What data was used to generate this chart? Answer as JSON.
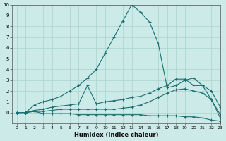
{
  "xlabel": "Humidex (Indice chaleur)",
  "xlim": [
    -0.5,
    23
  ],
  "ylim": [
    -1,
    10
  ],
  "yticks": [
    0,
    1,
    2,
    3,
    4,
    5,
    6,
    7,
    8,
    9,
    10
  ],
  "xticks": [
    0,
    1,
    2,
    3,
    4,
    5,
    6,
    7,
    8,
    9,
    10,
    11,
    12,
    13,
    14,
    15,
    16,
    17,
    18,
    19,
    20,
    21,
    22,
    23
  ],
  "bg_color": "#cceae7",
  "grid_color": "#aad4d0",
  "line_color": "#1a7070",
  "line1_x": [
    0,
    1,
    2,
    3,
    4,
    5,
    6,
    7,
    8,
    9,
    10,
    11,
    12,
    13,
    14,
    15,
    16,
    17,
    18,
    19,
    20,
    21,
    22,
    23
  ],
  "line1_y": [
    0.0,
    0.0,
    0.7,
    1.0,
    1.2,
    1.5,
    2.0,
    2.5,
    3.2,
    4.0,
    5.5,
    7.0,
    8.5,
    10.0,
    9.3,
    8.4,
    6.4,
    2.3,
    2.5,
    3.0,
    3.2,
    2.5,
    1.2,
    -0.5
  ],
  "line2_x": [
    0,
    1,
    2,
    3,
    4,
    5,
    6,
    7,
    8,
    9,
    10,
    11,
    12,
    13,
    14,
    15,
    16,
    17,
    18,
    19,
    20,
    21,
    22,
    23
  ],
  "line2_y": [
    0.0,
    0.0,
    0.2,
    0.3,
    0.5,
    0.6,
    0.7,
    0.8,
    2.5,
    0.8,
    1.0,
    1.1,
    1.2,
    1.4,
    1.5,
    1.8,
    2.2,
    2.5,
    3.1,
    3.1,
    2.5,
    2.5,
    2.0,
    0.5
  ],
  "line3_x": [
    0,
    1,
    2,
    3,
    4,
    5,
    6,
    7,
    8,
    9,
    10,
    11,
    12,
    13,
    14,
    15,
    16,
    17,
    18,
    19,
    20,
    21,
    22,
    23
  ],
  "line3_y": [
    0.0,
    0.0,
    0.1,
    0.1,
    0.2,
    0.3,
    0.3,
    0.3,
    0.3,
    0.3,
    0.3,
    0.3,
    0.4,
    0.5,
    0.7,
    1.0,
    1.4,
    1.8,
    2.1,
    2.2,
    2.0,
    1.8,
    1.2,
    -0.2
  ],
  "line4_x": [
    0,
    1,
    2,
    3,
    4,
    5,
    6,
    7,
    8,
    9,
    10,
    11,
    12,
    13,
    14,
    15,
    16,
    17,
    18,
    19,
    20,
    21,
    22,
    23
  ],
  "line4_y": [
    0.0,
    0.0,
    0.1,
    -0.1,
    -0.1,
    -0.1,
    -0.1,
    -0.2,
    -0.2,
    -0.2,
    -0.2,
    -0.2,
    -0.2,
    -0.2,
    -0.2,
    -0.3,
    -0.3,
    -0.3,
    -0.3,
    -0.4,
    -0.4,
    -0.5,
    -0.7,
    -0.8
  ]
}
